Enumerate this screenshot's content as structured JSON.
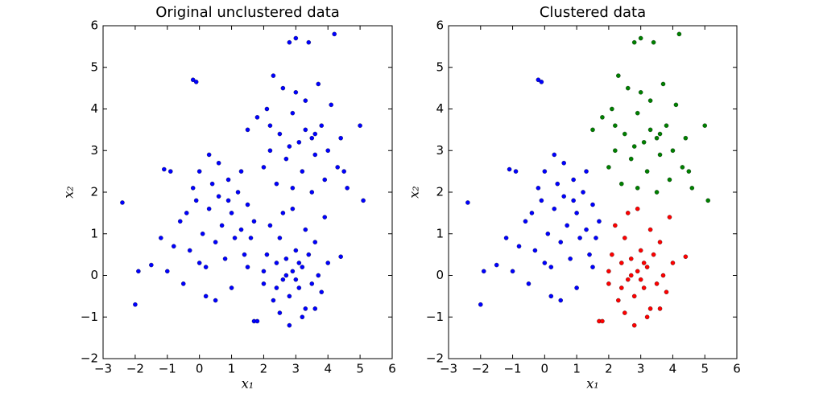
{
  "chart_data": [
    {
      "type": "scatter",
      "title": "Original unclustered data",
      "xlabel": "x₁",
      "ylabel": "x₂",
      "xlim": [
        -3,
        6
      ],
      "ylim": [
        -2,
        6
      ],
      "xticks": [
        {
          "value": -3,
          "label": "−3"
        },
        {
          "value": -2,
          "label": "−2"
        },
        {
          "value": -1,
          "label": "−1"
        },
        0,
        1,
        2,
        3,
        4,
        5,
        6
      ],
      "yticks": [
        {
          "value": -2,
          "label": "−2"
        },
        {
          "value": -1,
          "label": "−1"
        },
        0,
        1,
        2,
        3,
        4,
        5,
        6
      ],
      "series": [
        {
          "color": "#0000ff",
          "x": [
            -2.4,
            -1.9,
            -2.0,
            -1.5,
            -1.2,
            -1.1,
            -0.9,
            -0.8,
            -0.6,
            -0.5,
            -0.3,
            -0.2,
            -0.1,
            0.0,
            0.1,
            0.2,
            0.3,
            0.4,
            0.5,
            0.6,
            0.7,
            0.8,
            0.9,
            1.0,
            1.1,
            1.2,
            1.3,
            1.4,
            1.5,
            1.6,
            1.0,
            0.5,
            0.2,
            -0.2,
            -0.1,
            1.7,
            0.6,
            -0.4,
            0.0,
            1.3,
            0.9,
            1.5,
            -1.0,
            0.3,
            1.7,
            1.8,
            2.0,
            2.1,
            2.2,
            2.3,
            2.4,
            2.5,
            2.6,
            2.7,
            2.8,
            2.9,
            3.0,
            3.1,
            3.2,
            3.3,
            3.4,
            3.5,
            3.6,
            3.7,
            3.8,
            3.9,
            4.0,
            4.4,
            2.8,
            3.2,
            2.6,
            2.9,
            3.3,
            2.5,
            2.0,
            3.6,
            2.7,
            3.0,
            3.1,
            2.4,
            1.5,
            1.8,
            2.0,
            2.1,
            2.2,
            2.3,
            2.4,
            2.5,
            2.6,
            2.7,
            2.8,
            2.9,
            3.0,
            3.1,
            3.2,
            3.3,
            3.4,
            3.5,
            3.6,
            3.7,
            3.8,
            3.9,
            4.0,
            4.1,
            4.2,
            4.3,
            4.4,
            4.6,
            5.0,
            5.1,
            2.9,
            3.3,
            2.2,
            3.0,
            3.5,
            4.5,
            2.8,
            3.6
          ],
          "y": [
            1.75,
            0.1,
            -0.7,
            0.25,
            0.9,
            2.55,
            2.5,
            0.7,
            1.3,
            -0.2,
            0.6,
            2.1,
            1.8,
            2.5,
            1.0,
            0.2,
            1.6,
            2.2,
            0.8,
            1.9,
            1.2,
            0.4,
            2.3,
            1.5,
            0.9,
            2.0,
            1.1,
            0.5,
            1.7,
            0.9,
            -0.3,
            -0.6,
            -0.5,
            4.7,
            4.65,
            1.3,
            2.7,
            1.5,
            0.3,
            2.5,
            1.8,
            0.2,
            0.1,
            2.9,
            -1.1,
            -1.1,
            -0.2,
            0.5,
            1.2,
            -0.6,
            0.3,
            0.9,
            -0.1,
            0.4,
            -0.5,
            0.1,
            0.6,
            -0.3,
            0.2,
            -0.8,
            0.5,
            -0.2,
            0.8,
            0.0,
            -0.4,
            1.4,
            0.3,
            0.45,
            -1.2,
            -1.0,
            1.5,
            1.6,
            1.1,
            -0.9,
            0.1,
            -0.8,
            0.0,
            -0.1,
            0.3,
            -0.3,
            3.5,
            3.8,
            2.6,
            4.0,
            3.0,
            4.8,
            2.2,
            3.4,
            4.5,
            2.8,
            5.6,
            3.9,
            5.7,
            3.2,
            2.5,
            4.2,
            5.6,
            3.3,
            2.9,
            4.6,
            3.6,
            2.3,
            3.0,
            4.1,
            5.8,
            2.6,
            3.3,
            2.1,
            3.6,
            1.8,
            2.1,
            3.5,
            3.6,
            4.4,
            2.0,
            2.5,
            3.1,
            3.4
          ]
        }
      ]
    },
    {
      "type": "scatter",
      "title": "Clustered data",
      "xlabel": "x₁",
      "ylabel": "x₂",
      "xlim": [
        -3,
        6
      ],
      "ylim": [
        -2,
        6
      ],
      "xticks": [
        {
          "value": -3,
          "label": "−3"
        },
        {
          "value": -2,
          "label": "−2"
        },
        {
          "value": -1,
          "label": "−1"
        },
        0,
        1,
        2,
        3,
        4,
        5,
        6
      ],
      "yticks": [
        {
          "value": -2,
          "label": "−2"
        },
        {
          "value": -1,
          "label": "−1"
        },
        0,
        1,
        2,
        3,
        4,
        5,
        6
      ],
      "series": [
        {
          "color": "#0000ff",
          "x": [
            -2.4,
            -1.9,
            -2.0,
            -1.5,
            -1.2,
            -1.1,
            -0.9,
            -0.8,
            -0.6,
            -0.5,
            -0.3,
            -0.2,
            -0.1,
            0.0,
            0.1,
            0.2,
            0.3,
            0.4,
            0.5,
            0.6,
            0.7,
            0.8,
            0.9,
            1.0,
            1.1,
            1.2,
            1.3,
            1.4,
            1.5,
            1.6,
            1.0,
            0.5,
            0.2,
            -0.2,
            -0.1,
            1.7,
            0.6,
            -0.4,
            0.0,
            1.3,
            0.9,
            1.5,
            -1.0,
            0.3
          ],
          "y": [
            1.75,
            0.1,
            -0.7,
            0.25,
            0.9,
            2.55,
            2.5,
            0.7,
            1.3,
            -0.2,
            0.6,
            2.1,
            1.8,
            2.5,
            1.0,
            0.2,
            1.6,
            2.2,
            0.8,
            1.9,
            1.2,
            0.4,
            2.3,
            1.5,
            0.9,
            2.0,
            1.1,
            0.5,
            1.7,
            0.9,
            -0.3,
            -0.6,
            -0.5,
            4.7,
            4.65,
            1.3,
            2.7,
            1.5,
            0.3,
            2.5,
            1.8,
            0.2,
            0.1,
            2.9
          ]
        },
        {
          "color": "#ff0000",
          "x": [
            1.7,
            1.8,
            2.0,
            2.1,
            2.2,
            2.3,
            2.4,
            2.5,
            2.6,
            2.7,
            2.8,
            2.9,
            3.0,
            3.1,
            3.2,
            3.3,
            3.4,
            3.5,
            3.6,
            3.7,
            3.8,
            3.9,
            4.0,
            4.4,
            2.8,
            3.2,
            2.6,
            2.9,
            3.3,
            2.5,
            2.0,
            3.6,
            2.7,
            3.0,
            3.1,
            2.4
          ],
          "y": [
            -1.1,
            -1.1,
            -0.2,
            0.5,
            1.2,
            -0.6,
            0.3,
            0.9,
            -0.1,
            0.4,
            -0.5,
            0.1,
            0.6,
            -0.3,
            0.2,
            -0.8,
            0.5,
            -0.2,
            0.8,
            0.0,
            -0.4,
            1.4,
            0.3,
            0.45,
            -1.2,
            -1.0,
            1.5,
            1.6,
            1.1,
            -0.9,
            0.1,
            -0.8,
            0.0,
            -0.1,
            0.3,
            -0.3
          ]
        },
        {
          "color": "#008000",
          "x": [
            1.5,
            1.8,
            2.0,
            2.1,
            2.2,
            2.3,
            2.4,
            2.5,
            2.6,
            2.7,
            2.8,
            2.9,
            3.0,
            3.1,
            3.2,
            3.3,
            3.4,
            3.5,
            3.6,
            3.7,
            3.8,
            3.9,
            4.0,
            4.1,
            4.2,
            4.3,
            4.4,
            4.6,
            5.0,
            5.1,
            2.9,
            3.3,
            2.2,
            3.0,
            3.5,
            4.5,
            2.8,
            3.6
          ],
          "y": [
            3.5,
            3.8,
            2.6,
            4.0,
            3.0,
            4.8,
            2.2,
            3.4,
            4.5,
            2.8,
            5.6,
            3.9,
            5.7,
            3.2,
            2.5,
            4.2,
            5.6,
            3.3,
            2.9,
            4.6,
            3.6,
            2.3,
            3.0,
            4.1,
            5.8,
            2.6,
            3.3,
            2.1,
            3.6,
            1.8,
            2.1,
            3.5,
            3.6,
            4.4,
            2.0,
            2.5,
            3.1,
            3.4
          ]
        }
      ]
    }
  ]
}
